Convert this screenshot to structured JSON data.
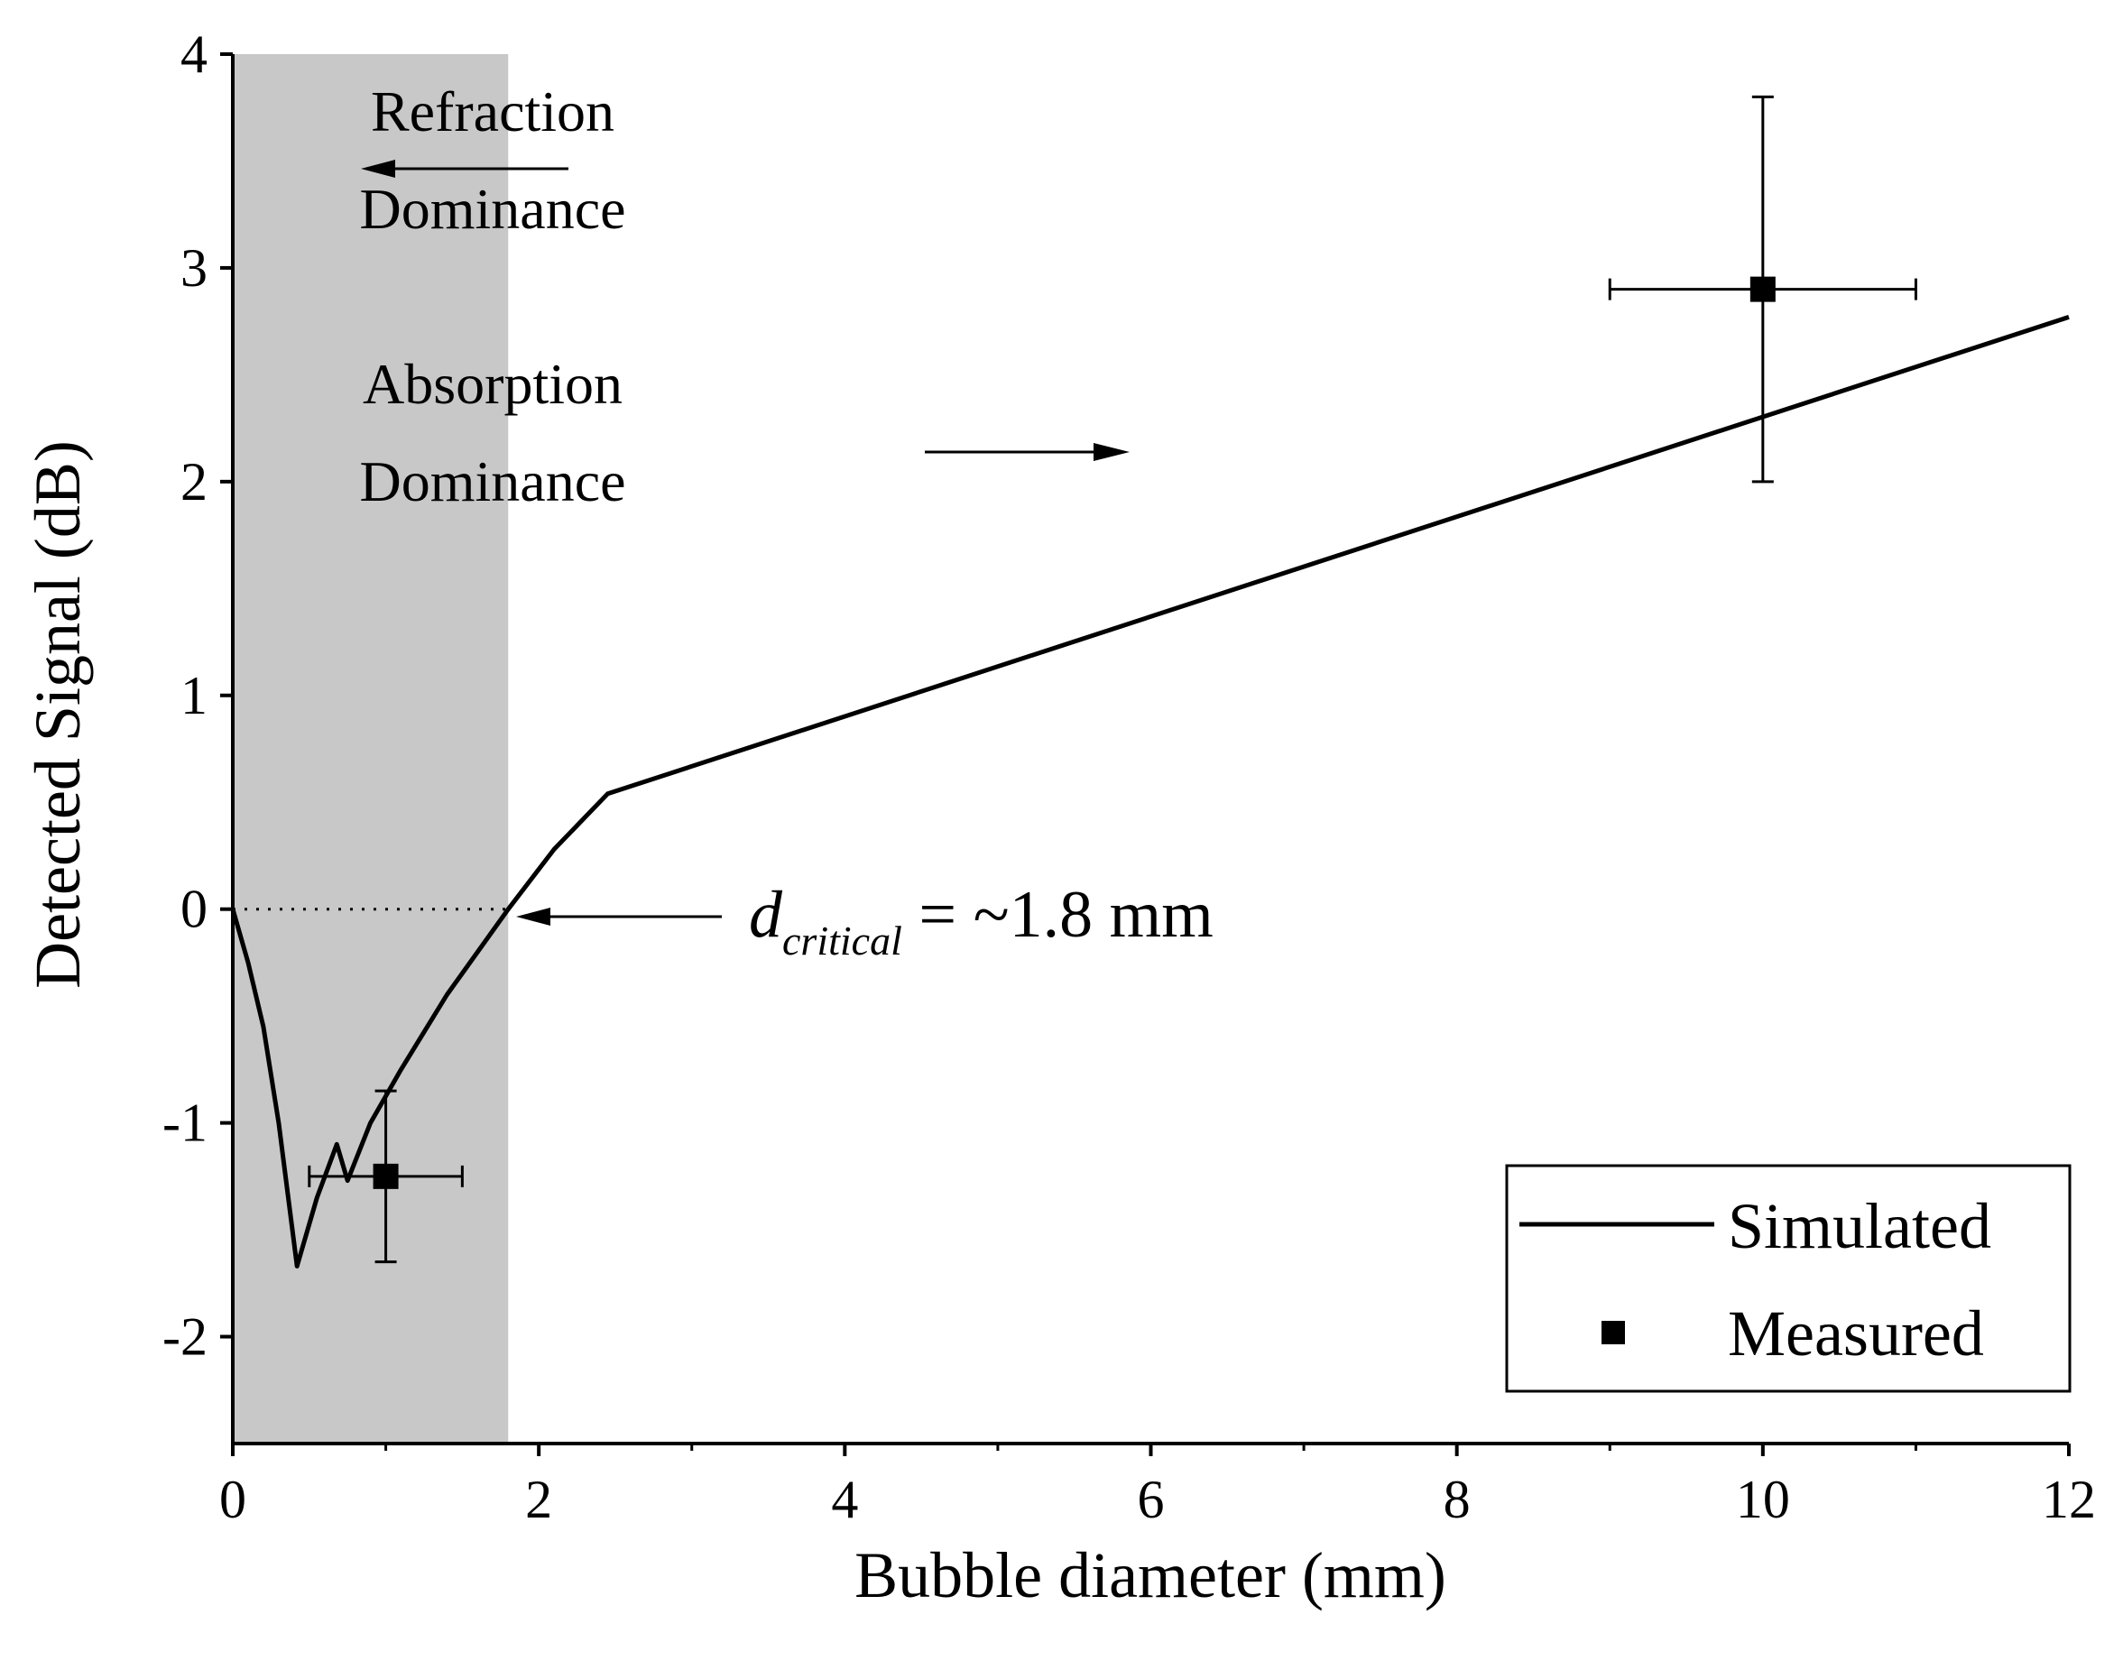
{
  "chart_data": {
    "type": "line",
    "title": "",
    "xlabel": "Bubble diameter (mm)",
    "ylabel": "Detected Signal (dB)",
    "xlim": [
      0,
      12
    ],
    "ylim": [
      -2.5,
      4
    ],
    "xticks": [
      0,
      2,
      4,
      6,
      8,
      10,
      12
    ],
    "yticks": [
      -2,
      -1,
      0,
      1,
      2,
      3,
      4
    ],
    "grid": false,
    "legend_position": "bottom-right",
    "series": [
      {
        "name": "Simulated",
        "kind": "line",
        "x": [
          0,
          0.1,
          0.2,
          0.3,
          0.42,
          0.55,
          0.68,
          0.75,
          0.9,
          1.1,
          1.4,
          1.8,
          2.1,
          2.45,
          12
        ],
        "y": [
          0,
          -0.25,
          -0.55,
          -1.0,
          -1.67,
          -1.35,
          -1.1,
          -1.27,
          -1.0,
          -0.75,
          -0.4,
          0.0,
          0.28,
          0.54,
          2.77
        ]
      },
      {
        "name": "Measured",
        "kind": "scatter",
        "points": [
          {
            "x": 1,
            "y": -1.25,
            "xerr": 0.5,
            "yerr_low": 0.4,
            "yerr_high": 0.4
          },
          {
            "x": 10,
            "y": 2.9,
            "xerr": 1,
            "yerr_low": 0.9,
            "yerr_high": 0.9
          }
        ]
      }
    ],
    "shaded_region": {
      "x_start": 0,
      "x_end": 1.8,
      "color": "#c8c8c8"
    },
    "reference_line": {
      "y": 0,
      "x_start": 0,
      "x_end": 1.8
    },
    "annotations": {
      "refraction_line1": "Refraction",
      "refraction_line2": "Dominance",
      "absorption_line1": "Absorption",
      "absorption_line2": "Dominance",
      "critical_symbol": "d",
      "critical_subscript": "critical",
      "critical_value": " = ~1.8 mm"
    },
    "legend": {
      "simulated": "Simulated",
      "measured": "Measured"
    }
  }
}
